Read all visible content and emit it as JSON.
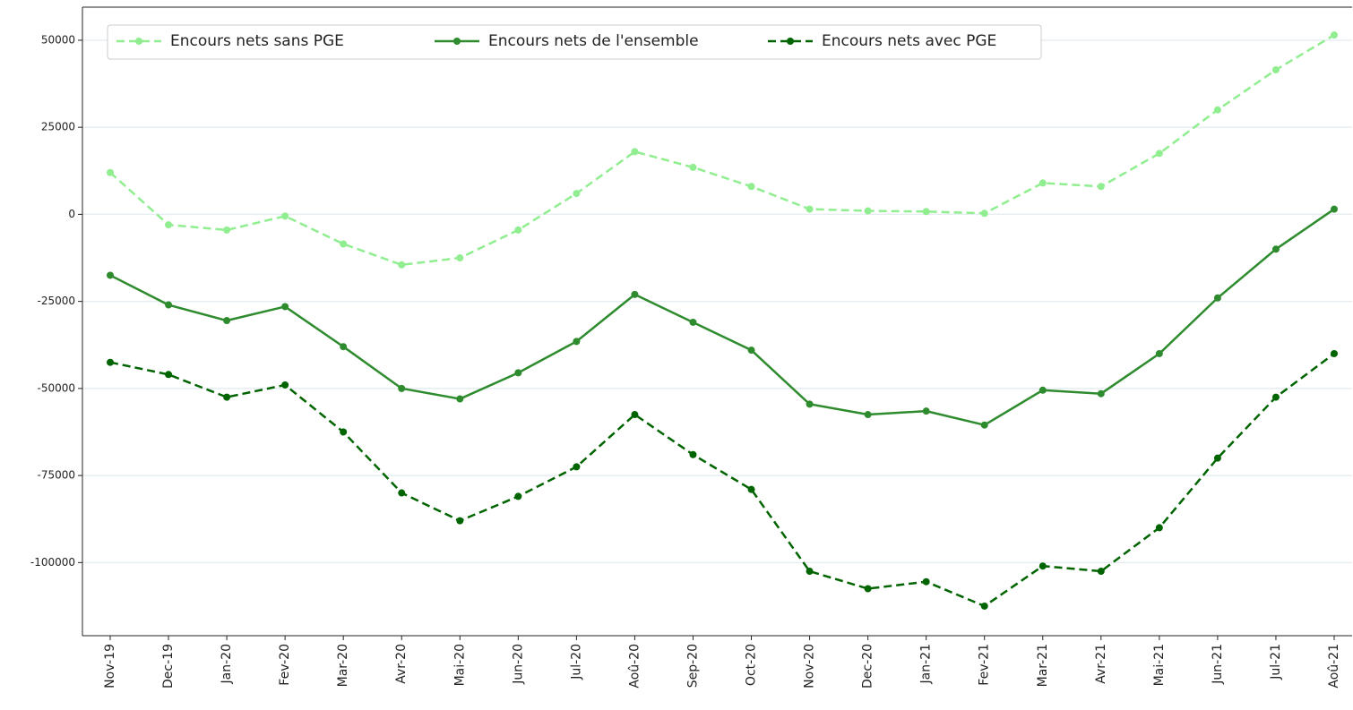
{
  "chart_data": {
    "type": "line",
    "categories": [
      "Nov-19",
      "Dec-19",
      "Jan-20",
      "Fev-20",
      "Mar-20",
      "Avr-20",
      "Mai-20",
      "Jun-20",
      "Jul-20",
      "Aoû-20",
      "Sep-20",
      "Oct-20",
      "Nov-20",
      "Dec-20",
      "Jan-21",
      "Fev-21",
      "Mar-21",
      "Avr-21",
      "Mai-21",
      "Jun-21",
      "Jul-21",
      "Aoû-21"
    ],
    "series": [
      {
        "name": "Encours nets sans PGE",
        "color": "#90ee90",
        "line_style": "dashed",
        "values": [
          12000,
          -3000,
          -4500,
          -500,
          -8500,
          -14500,
          -12500,
          -4500,
          6000,
          18000,
          13500,
          8000,
          1500,
          1000,
          800,
          300,
          9000,
          8000,
          17500,
          30000,
          41500,
          51500
        ]
      },
      {
        "name": "Encours nets de l'ensemble",
        "color": "#2e8b2e",
        "line_style": "solid",
        "values": [
          -17500,
          -26000,
          -30500,
          -26500,
          -38000,
          -50000,
          -53000,
          -45500,
          -36500,
          -23000,
          -31000,
          -39000,
          -54500,
          -57500,
          -56500,
          -60500,
          -50500,
          -51500,
          -40000,
          -24000,
          -10000,
          1500
        ]
      },
      {
        "name": "Encours nets avec PGE",
        "color": "#006400",
        "line_style": "dashed",
        "values": [
          -42500,
          -46000,
          -52500,
          -49000,
          -62500,
          -80000,
          -88000,
          -81000,
          -72500,
          -57500,
          -69000,
          -79000,
          -102500,
          -107500,
          -105500,
          -112500,
          -101000,
          -102500,
          -90000,
          -70000,
          -52500,
          -40000
        ]
      }
    ],
    "ylim": [
      -121000,
      59500
    ],
    "yticks": [
      -100000,
      -75000,
      -50000,
      -25000,
      0,
      25000,
      50000
    ],
    "grid": true,
    "legend": "upper left"
  }
}
